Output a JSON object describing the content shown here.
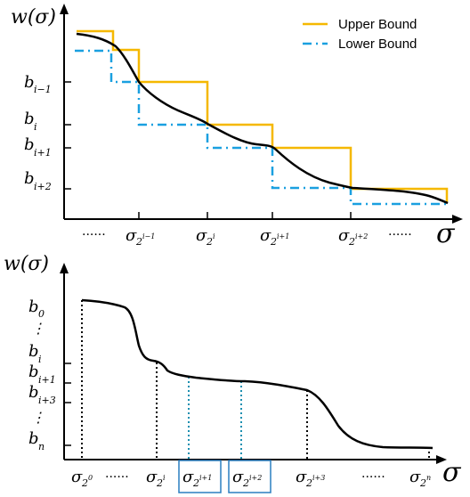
{
  "top": {
    "yaxis": {
      "main": "w(σ)"
    },
    "xaxis": {
      "main": "σ"
    },
    "legend": {
      "upper": "Upper Bound",
      "lower": "Lower Bound",
      "upper_color": "#f5b800",
      "lower_color": "#1aa0e0"
    },
    "y_ticks": [
      {
        "base": "b",
        "sub": "i−1"
      },
      {
        "base": "b",
        "sub": "i"
      },
      {
        "base": "b",
        "sub": "i+1"
      },
      {
        "base": "b",
        "sub": "i+2"
      }
    ],
    "x_ticks": [
      {
        "base": "σ",
        "sub": "2",
        "sup": "i−1"
      },
      {
        "base": "σ",
        "sub": "2",
        "sup": "i"
      },
      {
        "base": "σ",
        "sub": "2",
        "sup": "i+1"
      },
      {
        "base": "σ",
        "sub": "2",
        "sup": "i+2"
      }
    ],
    "left_dots": "......",
    "right_dots": "......"
  },
  "bottom": {
    "yaxis": {
      "main": "w(σ)"
    },
    "xaxis": {
      "main": "σ"
    },
    "y_ticks": [
      {
        "base": "b",
        "sub": "0"
      },
      {
        "base": "⋮",
        "sub": ""
      },
      {
        "base": "b",
        "sub": "i"
      },
      {
        "base": "b",
        "sub": "i+1"
      },
      {
        "base": "b",
        "sub": "i+3"
      },
      {
        "base": "⋮",
        "sub": ""
      },
      {
        "base": "b",
        "sub": "n"
      }
    ],
    "x_ticks": [
      {
        "base": "σ",
        "sub": "2",
        "sup": "0"
      },
      {
        "base": "σ",
        "sub": "2",
        "sup": "i"
      },
      {
        "base": "σ",
        "sub": "2",
        "sup": "i+1"
      },
      {
        "base": "σ",
        "sub": "2",
        "sup": "i+2"
      },
      {
        "base": "σ",
        "sub": "2",
        "sup": "i+3"
      },
      {
        "base": "σ",
        "sub": "2",
        "sup": "n"
      }
    ],
    "dots_1": "......",
    "dots_2": "......",
    "box_color": "#2a7fc0",
    "dotted_color": "#1a8fb0"
  }
}
